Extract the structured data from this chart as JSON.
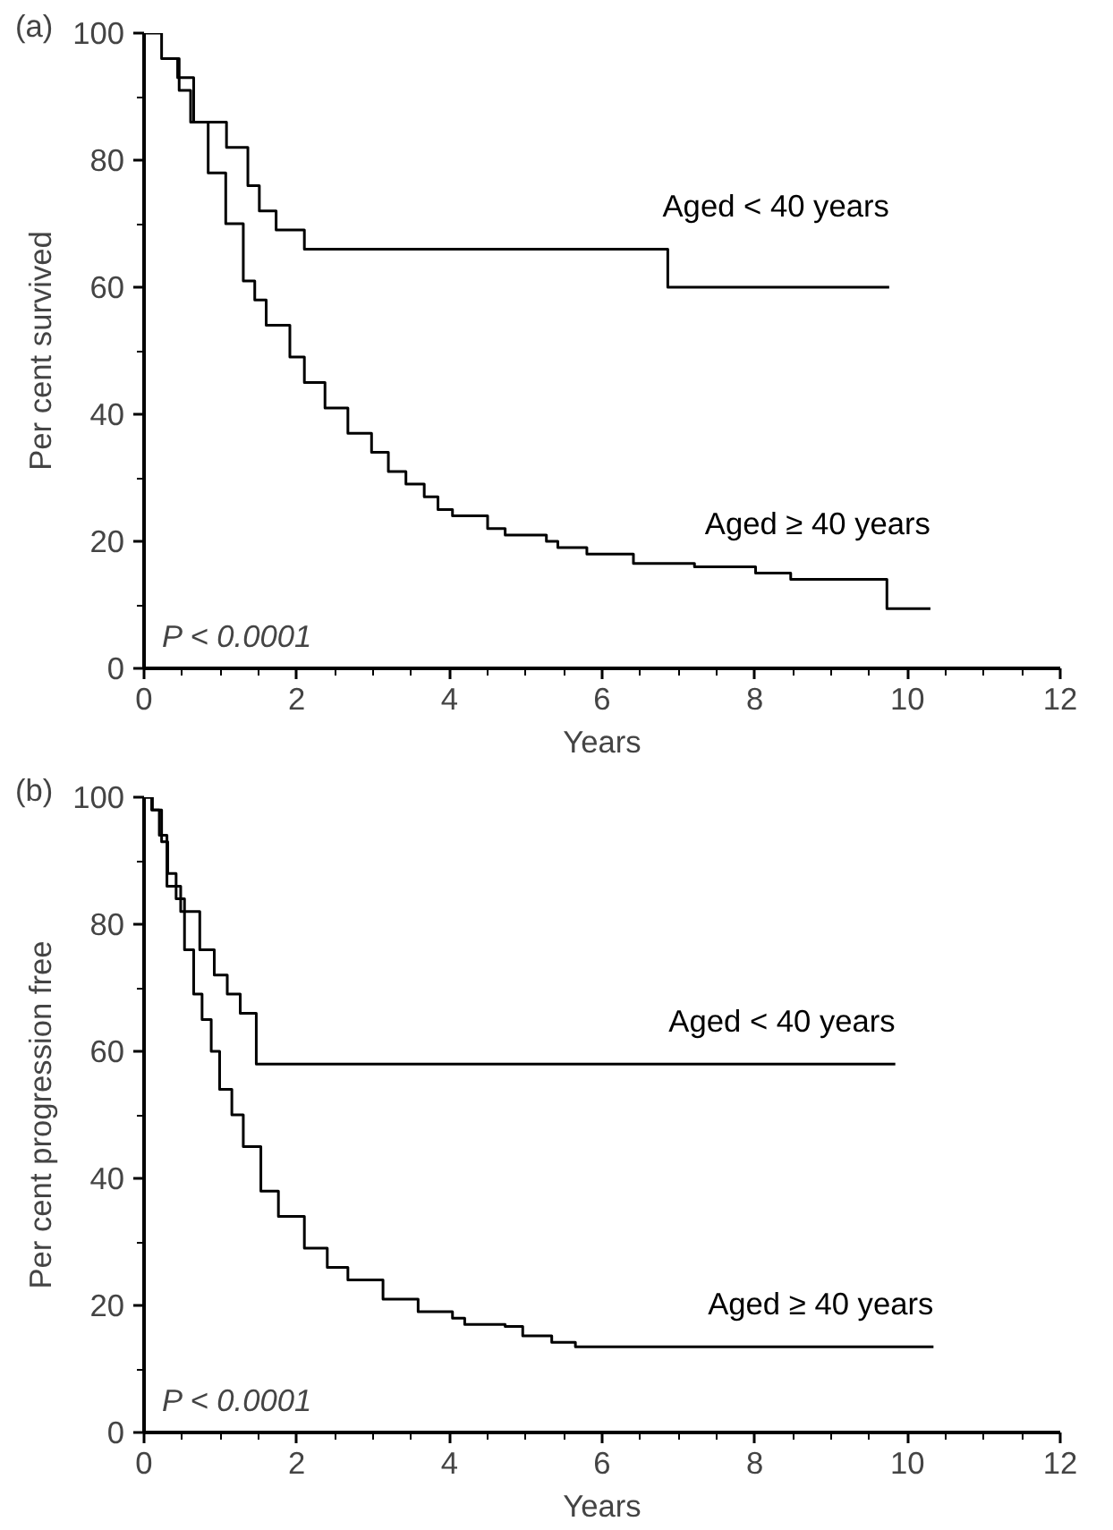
{
  "chart_data": [
    {
      "type": "step",
      "title": "(a)",
      "xlabel": "Years",
      "ylabel": "Per cent survived",
      "xlim": [
        0,
        12
      ],
      "ylim": [
        0,
        100
      ],
      "xticks": [
        0,
        2,
        4,
        6,
        8,
        10,
        12
      ],
      "yticks": [
        0,
        20,
        40,
        60,
        80,
        100
      ],
      "grid": false,
      "legend": false,
      "marker": "none",
      "line_style": "solid",
      "annotations": [
        "P < 0.0001"
      ],
      "series": [
        {
          "name": "Aged < 40 years",
          "color": "#000000",
          "x": [
            0.44,
            0.44,
            0.65,
            1.08,
            1.36,
            1.51,
            1.73,
            2.1,
            6.86,
            9.76
          ],
          "values": [
            96,
            93,
            86,
            82,
            76,
            72,
            69,
            66,
            60,
            60
          ]
        },
        {
          "name": "Aged ≥ 40 years",
          "color": "#000000",
          "x": [
            0,
            0.23,
            0.46,
            0.61,
            0.84,
            1.07,
            1.3,
            1.45,
            1.6,
            1.91,
            2.1,
            2.37,
            2.67,
            2.98,
            3.2,
            3.43,
            3.67,
            3.85,
            4.04,
            4.5,
            4.73,
            5.27,
            5.42,
            5.8,
            6.41,
            7.21,
            8.01,
            8.47,
            9.73,
            10.3
          ],
          "values": [
            100,
            96,
            91,
            86,
            78,
            70,
            61,
            58,
            54,
            49,
            45,
            41,
            37,
            34,
            31,
            29,
            27,
            25,
            24,
            22,
            21,
            20,
            19,
            18,
            16.5,
            16,
            15,
            14,
            9.4,
            9.4
          ]
        }
      ]
    },
    {
      "type": "step",
      "title": "(b)",
      "xlabel": "Years",
      "ylabel": "Per cent progression free",
      "xlim": [
        0,
        12
      ],
      "ylim": [
        0,
        100
      ],
      "xticks": [
        0,
        2,
        4,
        6,
        8,
        10,
        12
      ],
      "yticks": [
        0,
        20,
        40,
        60,
        80,
        100
      ],
      "grid": false,
      "legend": false,
      "marker": "none",
      "line_style": "solid",
      "annotations": [
        "P < 0.0001"
      ],
      "series": [
        {
          "name": "Aged < 40 years",
          "color": "#000000",
          "x": [
            0,
            0.1,
            0.2,
            0.3,
            0.48,
            0.73,
            0.92,
            1.09,
            1.26,
            1.47,
            9.84
          ],
          "values": [
            100,
            98,
            94,
            86,
            82,
            76,
            72,
            69,
            66,
            58,
            58
          ]
        },
        {
          "name": "Aged ≥ 40 years",
          "color": "#000000",
          "x": [
            0,
            0.11,
            0.23,
            0.31,
            0.42,
            0.53,
            0.65,
            0.76,
            0.88,
            0.99,
            1.15,
            1.3,
            1.53,
            1.76,
            2.1,
            2.4,
            2.67,
            3.13,
            3.59,
            4.04,
            4.2,
            4.73,
            4.96,
            5.34,
            5.65,
            10.34
          ],
          "values": [
            100,
            98,
            93,
            88,
            84,
            76,
            69,
            65,
            60,
            54,
            50,
            45,
            38,
            34,
            29,
            26,
            24,
            21,
            19,
            18,
            17,
            16.7,
            15.2,
            14.2,
            13.5,
            13.5
          ]
        }
      ]
    }
  ]
}
